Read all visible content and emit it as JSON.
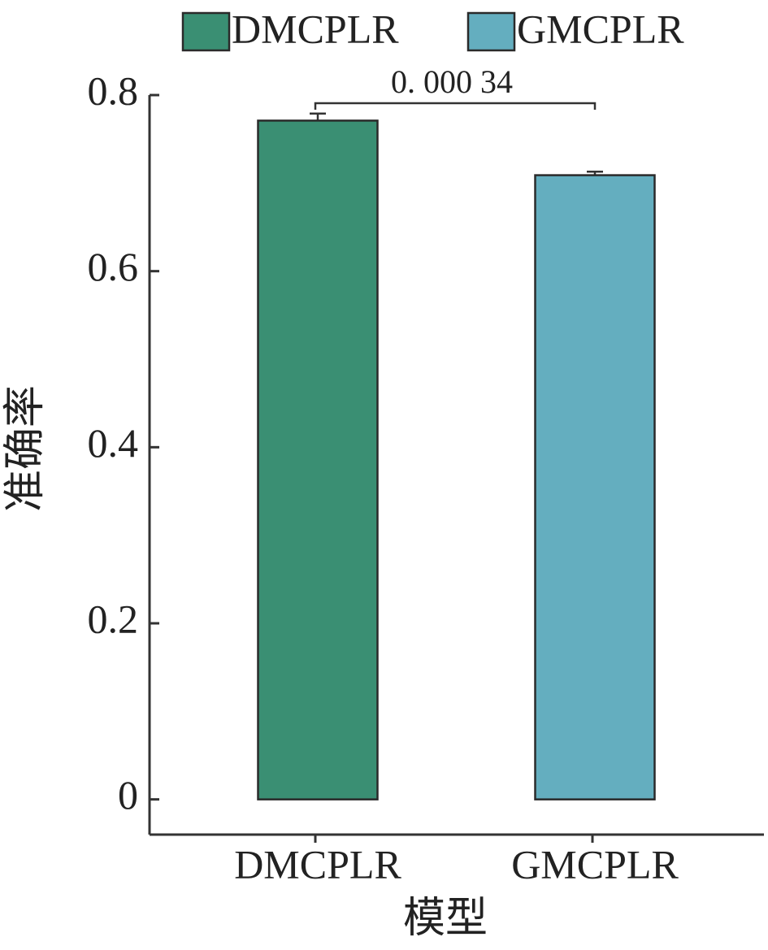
{
  "chart_data": {
    "type": "bar",
    "categories": [
      "DMCPLR",
      "GMCPLR"
    ],
    "values": [
      0.771,
      0.709
    ],
    "errors": [
      0.008,
      0.004
    ],
    "colors": [
      "#3a8f73",
      "#64aebf"
    ],
    "x_label": "模型",
    "y_label": "准确率",
    "ylim": [
      -0.04,
      0.8
    ],
    "yticks": [
      0,
      0.2,
      0.4,
      0.6,
      0.8
    ],
    "annotation": "0. 000 34"
  }
}
